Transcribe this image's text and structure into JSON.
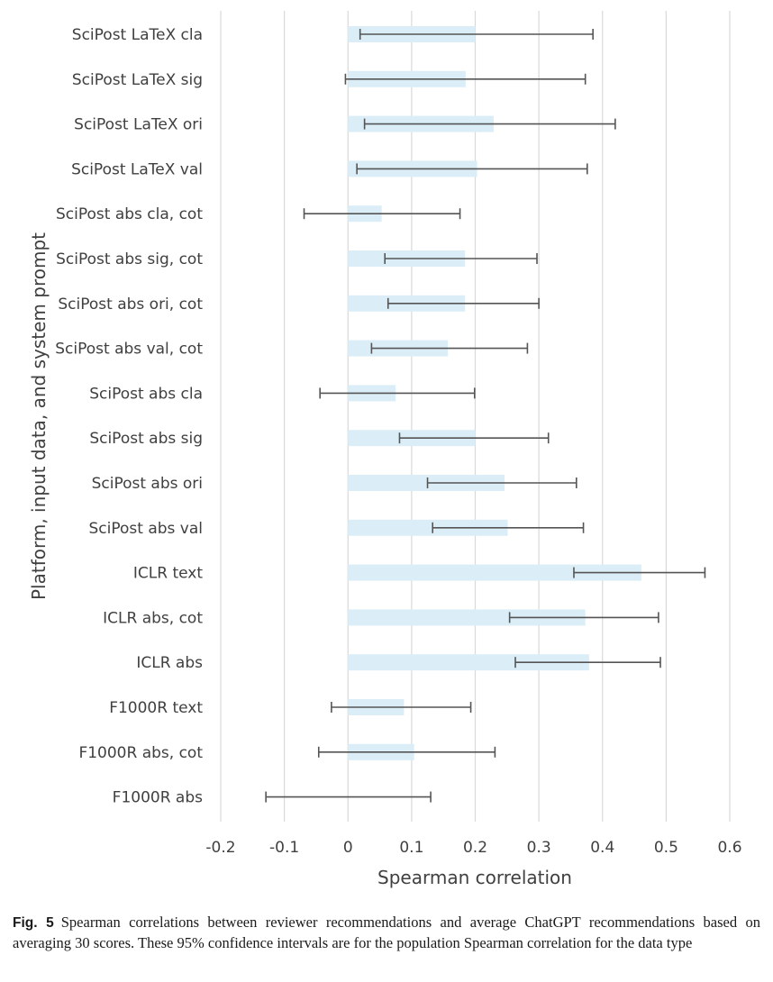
{
  "chart_data": {
    "type": "bar",
    "orientation": "horizontal",
    "title": "",
    "xlabel": "Spearman correlation",
    "ylabel": "Platform, input data, and system prompt",
    "xlim": [
      -0.2,
      0.6
    ],
    "xticks": [
      "-0.2",
      "-0.1",
      "0",
      "0.1",
      "0.2",
      "0.3",
      "0.4",
      "0.5",
      "0.6"
    ],
    "grid": "vertical",
    "bar_color": "#dbeef7",
    "error_color": "#555555",
    "categories": [
      "SciPost LaTeX cla",
      "SciPost LaTeX sig",
      "SciPost LaTeX ori",
      "SciPost LaTeX val",
      "SciPost abs cla, cot",
      "SciPost abs sig, cot",
      "SciPost abs ori, cot",
      "SciPost abs val, cot",
      "SciPost abs cla",
      "SciPost abs sig",
      "SciPost abs ori",
      "SciPost abs val",
      "ICLR text",
      "ICLR abs, cot",
      "ICLR abs",
      "F1000R text",
      "F1000R abs, cot",
      "F1000R abs"
    ],
    "values": [
      0.2,
      0.185,
      0.229,
      0.203,
      0.053,
      0.184,
      0.184,
      0.157,
      0.075,
      0.2,
      0.246,
      0.251,
      0.461,
      0.373,
      0.379,
      0.088,
      0.104,
      0.0
    ],
    "ci_low": [
      0.019,
      -0.004,
      0.026,
      0.014,
      -0.069,
      0.058,
      0.063,
      0.037,
      -0.044,
      0.081,
      0.125,
      0.133,
      0.355,
      0.254,
      0.263,
      -0.026,
      -0.046,
      -0.129
    ],
    "ci_high": [
      0.385,
      0.373,
      0.42,
      0.376,
      0.176,
      0.297,
      0.3,
      0.282,
      0.199,
      0.315,
      0.359,
      0.37,
      0.561,
      0.488,
      0.491,
      0.193,
      0.231,
      0.13
    ]
  },
  "caption": {
    "label": "Fig. 5",
    "text": "Spearman correlations between reviewer recommendations and average ChatGPT recommendations based on averaging 30 scores. These 95% confidence intervals are for the population Spearman correlation for the data type"
  }
}
